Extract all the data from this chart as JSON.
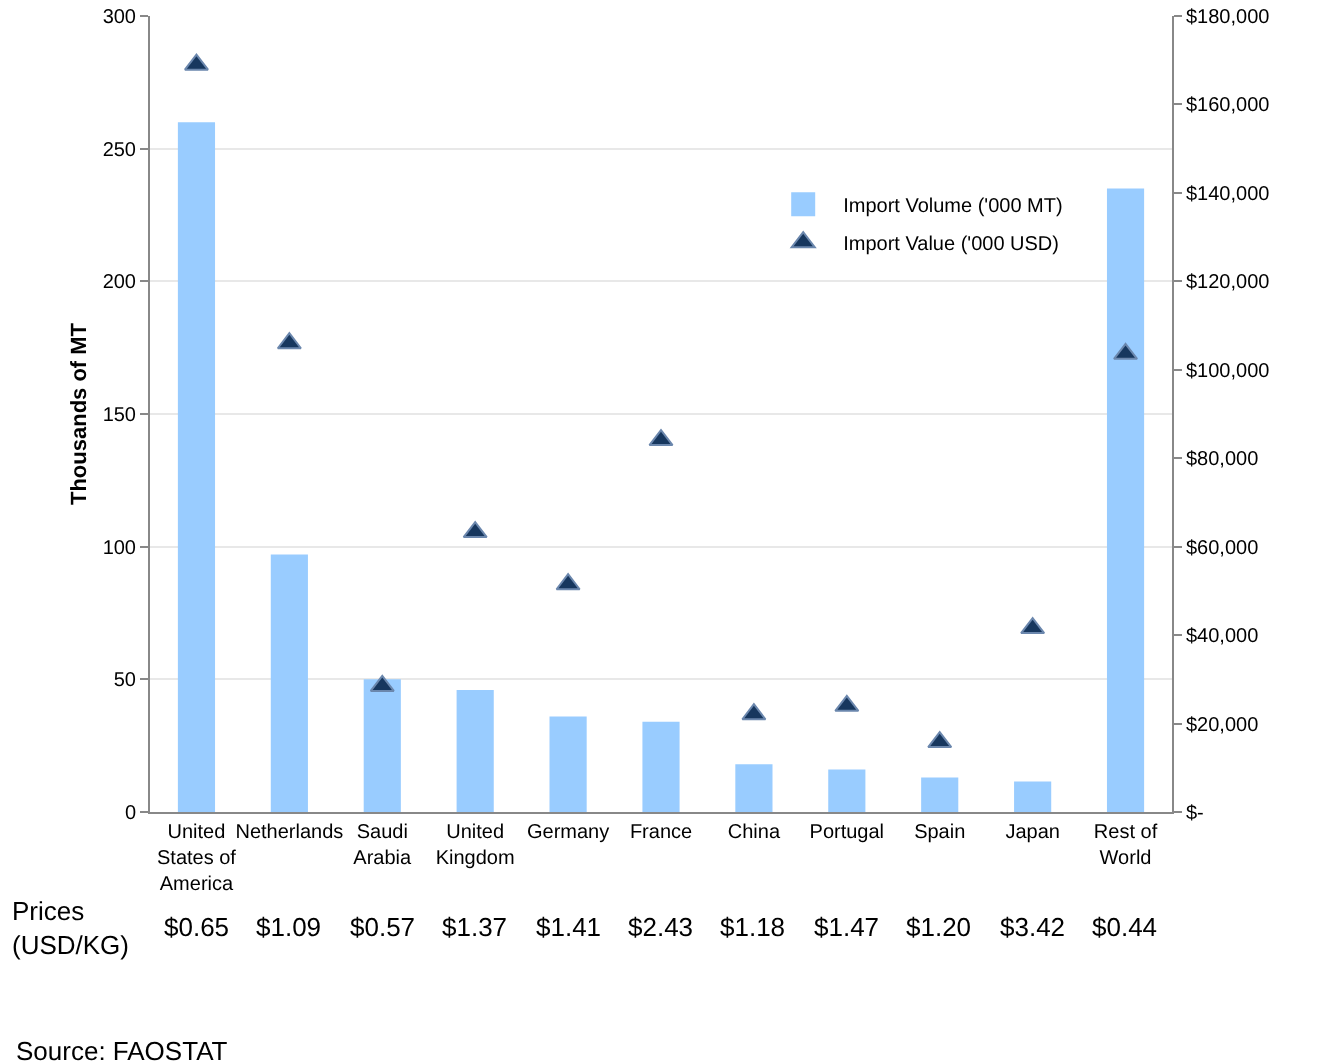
{
  "chart_data": {
    "type": "bar",
    "ylabel": "Thousands of MT",
    "categories": [
      "United States of America",
      "Netherlands",
      "Saudi Arabia",
      "United Kingdom",
      "Germany",
      "France",
      "China",
      "Portugal",
      "Spain",
      "Japan",
      "Rest of World"
    ],
    "series": [
      {
        "name": "Import Volume ('000 MT)",
        "color": "#99ccff",
        "values": [
          260,
          97,
          50,
          46,
          36,
          34,
          18,
          16,
          13,
          11.5,
          235
        ]
      },
      {
        "name": "Import Value ('000 USD)",
        "type": "scatter",
        "axis": "y2",
        "marker": "triangle",
        "color": "#17375e",
        "values": [
          169000,
          106000,
          28500,
          63300,
          51500,
          84100,
          22100,
          24000,
          15800,
          41600,
          103600
        ]
      }
    ],
    "ylim": [
      0,
      300
    ],
    "yticks": [
      0,
      50,
      100,
      150,
      200,
      250,
      300
    ],
    "y2lim": [
      0,
      180000
    ],
    "y2ticks": [
      {
        "value": 0,
        "label": "$-"
      },
      {
        "value": 20000,
        "label": "$20,000"
      },
      {
        "value": 40000,
        "label": "$40,000"
      },
      {
        "value": 60000,
        "label": "$60,000"
      },
      {
        "value": 80000,
        "label": "$80,000"
      },
      {
        "value": 100000,
        "label": "$100,000"
      },
      {
        "value": 120000,
        "label": "$120,000"
      },
      {
        "value": 140000,
        "label": "$140,000"
      },
      {
        "value": 160000,
        "label": "$160,000"
      },
      {
        "value": 180000,
        "label": "$180,000"
      }
    ],
    "grid": "y",
    "legend": "top right",
    "annotations": [
      "Prices (USD/KG)",
      "Source: FAOSTAT",
      "$0.65",
      "$1.09",
      "$0.57",
      "$1.37",
      "$1.41",
      "$2.43",
      "$1.18",
      "$1.47",
      "$1.20",
      "$3.42",
      "$0.44"
    ]
  }
}
